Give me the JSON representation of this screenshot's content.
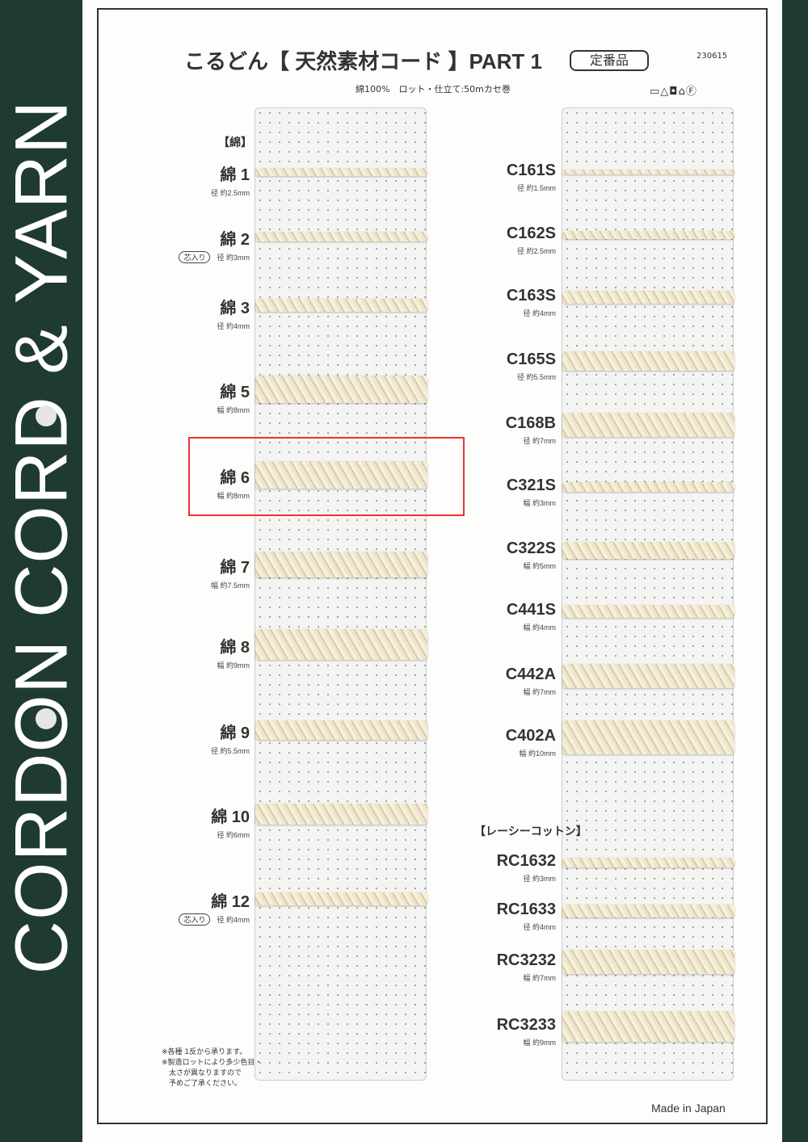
{
  "side_band": "CORDON CORD & YARN",
  "header": {
    "title": "こるどん【 天然素材コード 】PART 1",
    "badge": "定番品",
    "code": "230615",
    "subtitle": "綿100%　ロット・仕立て:50mカセ巻",
    "care_icons": [
      "wash-30-icon",
      "no-bleach-icon",
      "tumble-dry-icon",
      "iron-low-icon",
      "dry-clean-f-icon"
    ],
    "care_glyphs": "▭△◘⌂Ⓕ"
  },
  "left_section": "【綿】",
  "left_items": [
    {
      "name": "綿 1",
      "spec": "径 約2.5mm",
      "mm": 2.5
    },
    {
      "name": "綿 2",
      "spec": "径 約3mm",
      "mm": 3,
      "tag": "芯入り"
    },
    {
      "name": "綿 3",
      "spec": "径 約4mm",
      "mm": 4
    },
    {
      "name": "綿 5",
      "spec": "幅 約8mm",
      "mm": 8
    },
    {
      "name": "綿 6",
      "spec": "幅 約8mm",
      "mm": 8,
      "highlighted": true
    },
    {
      "name": "綿 7",
      "spec": "幅 約7.5mm",
      "mm": 7.5
    },
    {
      "name": "綿 8",
      "spec": "幅 約9mm",
      "mm": 9
    },
    {
      "name": "綿 9",
      "spec": "径 約5.5mm",
      "mm": 5.5
    },
    {
      "name": "綿 10",
      "spec": "径 約6mm",
      "mm": 6
    },
    {
      "name": "綿 12",
      "spec": "径 約4mm",
      "mm": 4,
      "tag": "芯入り"
    }
  ],
  "right_items": [
    {
      "name": "C161S",
      "spec": "径 約1.5mm",
      "mm": 1.5
    },
    {
      "name": "C162S",
      "spec": "径 約2.5mm",
      "mm": 2.5
    },
    {
      "name": "C163S",
      "spec": "径 約4mm",
      "mm": 4
    },
    {
      "name": "C165S",
      "spec": "径 約5.5mm",
      "mm": 5.5
    },
    {
      "name": "C168B",
      "spec": "径 約7mm",
      "mm": 7
    },
    {
      "name": "C321S",
      "spec": "幅 約3mm",
      "mm": 3
    },
    {
      "name": "C322S",
      "spec": "幅 約5mm",
      "mm": 5
    },
    {
      "name": "C441S",
      "spec": "幅 約4mm",
      "mm": 4
    },
    {
      "name": "C442A",
      "spec": "幅 約7mm",
      "mm": 7
    },
    {
      "name": "C402A",
      "spec": "幅 約10mm",
      "mm": 10
    },
    {
      "name": "RC1632",
      "spec": "径 約3mm",
      "mm": 3
    },
    {
      "name": "RC1633",
      "spec": "径 約4mm",
      "mm": 4
    },
    {
      "name": "RC3232",
      "spec": "幅 約7mm",
      "mm": 7
    },
    {
      "name": "RC3233",
      "spec": "幅 約9mm",
      "mm": 9
    }
  ],
  "right_section": "【レーシーコットン】",
  "notes": [
    "※各種 1反から承ります。",
    "※製造ロットにより多少色目・",
    "　太さが異なりますので",
    "　予めご了承ください。"
  ],
  "footer": "Made in Japan"
}
